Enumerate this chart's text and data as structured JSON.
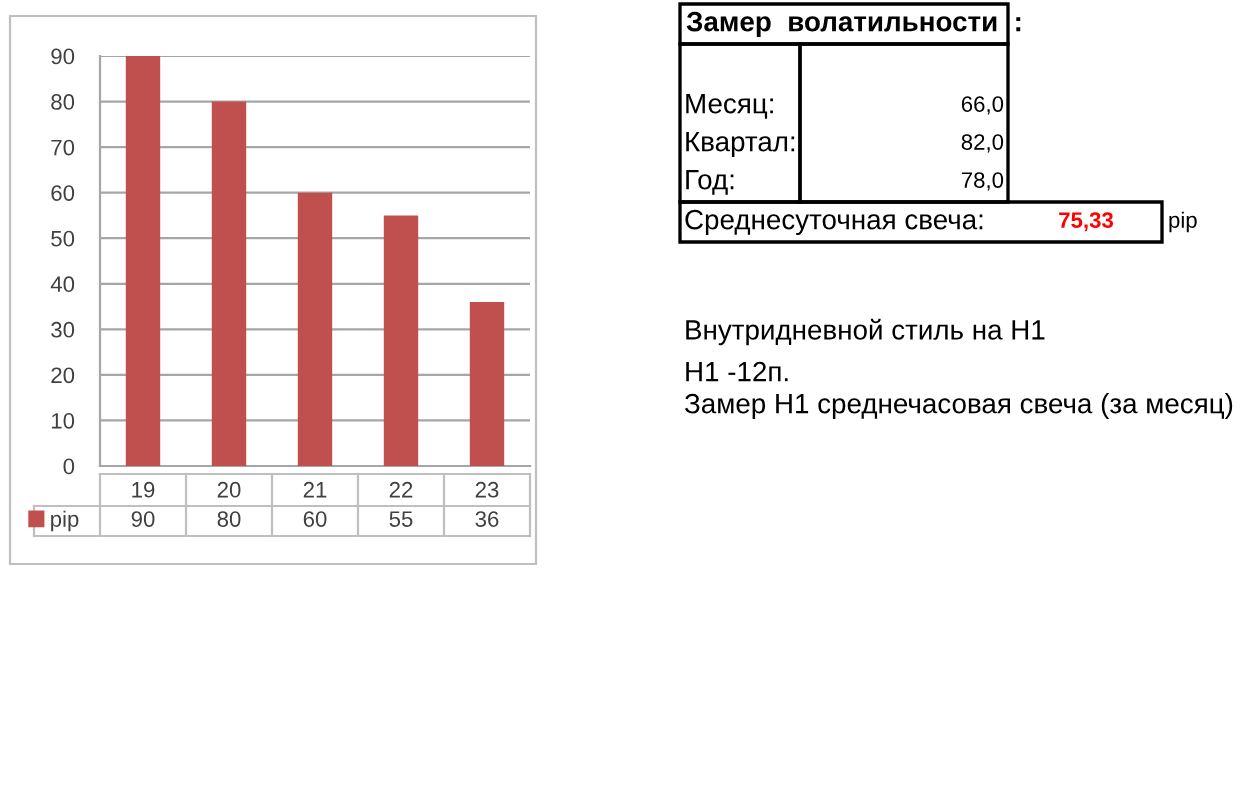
{
  "chart_data": [
    {
      "type": "bar",
      "categories": [
        "19",
        "20",
        "21",
        "22",
        "23"
      ],
      "series": [
        {
          "name": "pip",
          "color": "#c0504d",
          "values": [
            90,
            80,
            60,
            55,
            36
          ]
        }
      ],
      "ylim": [
        0,
        90
      ],
      "yticks": [
        0,
        10,
        20,
        30,
        40,
        50,
        60,
        70,
        80,
        90
      ],
      "grid": "y",
      "legend": "bottom",
      "data_labels": true
    },
    {
      "type": "other",
      "title": "Замер  волатильности  :",
      "annotations": [
        "Месяц:",
        "66,0",
        "Квартал:",
        "82,0",
        "Год:",
        "78,0",
        "Среднесуточная свеча:",
        "75,33",
        "pip",
        "Внутридневной стиль на H1",
        "H1 -12п.",
        "Замер H1 среднечасовая свеча (за месяц)"
      ]
    }
  ]
}
